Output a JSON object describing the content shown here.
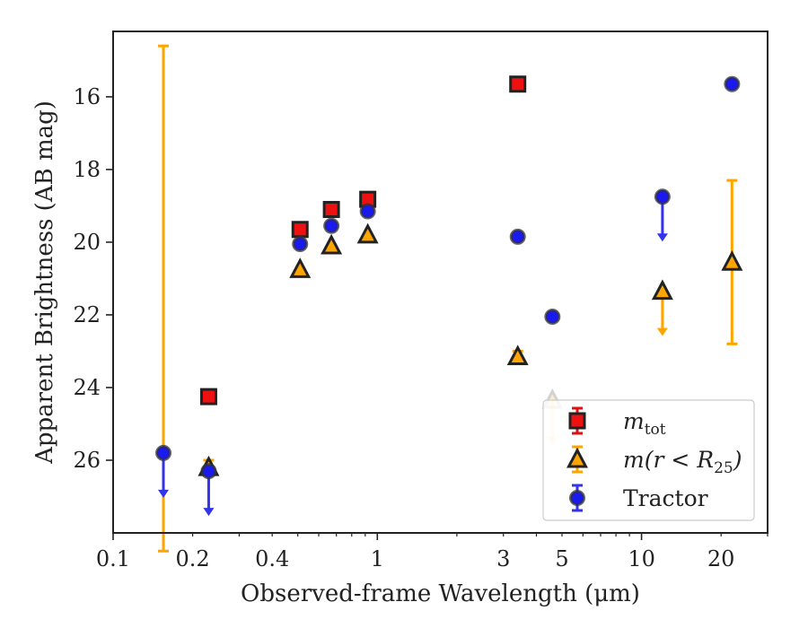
{
  "chart_data": {
    "type": "scatter",
    "title": "",
    "xlabel": "Observed-frame Wavelength (μm)",
    "ylabel": "Apparent Brightness (AB mag)",
    "xscale": "log",
    "xlim": [
      0.1,
      30
    ],
    "ylim": [
      28.0,
      14.2
    ],
    "y_inverted": true,
    "grid": false,
    "legend_position": "lower-right",
    "x_ticks": [
      {
        "value": 0.1,
        "label": "0.1"
      },
      {
        "value": 0.2,
        "label": "0.2"
      },
      {
        "value": 0.4,
        "label": "0.4"
      },
      {
        "value": 1,
        "label": "1"
      },
      {
        "value": 3,
        "label": "3"
      },
      {
        "value": 5,
        "label": "5"
      },
      {
        "value": 10,
        "label": "10"
      },
      {
        "value": 20,
        "label": "20"
      }
    ],
    "y_ticks": [
      {
        "value": 16,
        "label": "16"
      },
      {
        "value": 18,
        "label": "18"
      },
      {
        "value": 20,
        "label": "20"
      },
      {
        "value": 22,
        "label": "22"
      },
      {
        "value": 24,
        "label": "24"
      },
      {
        "value": 26,
        "label": "26"
      }
    ],
    "series": [
      {
        "name": "m_tot",
        "legend_label": {
          "base": "m",
          "sub": "tot"
        },
        "marker": "square",
        "face_color": "#ee1111",
        "edge_color": "#222222",
        "errorbar_color": "#dd1111",
        "points": [
          {
            "x": 0.23,
            "y": 24.25
          },
          {
            "x": 0.51,
            "y": 19.65
          },
          {
            "x": 0.67,
            "y": 19.1
          },
          {
            "x": 0.92,
            "y": 18.82
          },
          {
            "x": 3.4,
            "y": 15.65
          }
        ]
      },
      {
        "name": "m(r<R25)",
        "legend_label": {
          "base": "m(r < R",
          "sub": "25",
          "tail": ")"
        },
        "marker": "triangle",
        "face_color": "#ffa500",
        "edge_color": "#222222",
        "errorbar_color": "#ffa500",
        "points": [
          {
            "x": 0.155,
            "y_err_top": 14.6,
            "y_err_bottom": 28.5,
            "no_marker": true
          },
          {
            "x": 0.23,
            "y": 26.2,
            "y_err_top": 26.0
          },
          {
            "x": 0.51,
            "y": 20.75
          },
          {
            "x": 0.67,
            "y": 20.1
          },
          {
            "x": 0.92,
            "y": 19.8
          },
          {
            "x": 3.4,
            "y": 23.15,
            "y_err_top": 23.0
          },
          {
            "x": 4.6,
            "y": 24.35,
            "upper_limit": true,
            "faded": true
          },
          {
            "x": 12,
            "y": 21.35,
            "upper_limit": true
          },
          {
            "x": 22,
            "y": 20.55,
            "y_err_top": 18.3,
            "y_err_bottom": 22.8
          }
        ]
      },
      {
        "name": "Tractor",
        "legend_label": {
          "base": "Tractor"
        },
        "marker": "circle",
        "face_color": "#1a1aee",
        "edge_color": "#333333",
        "errorbar_color": "#3333ee",
        "points": [
          {
            "x": 0.155,
            "y": 25.8,
            "upper_limit": true
          },
          {
            "x": 0.23,
            "y": 26.3,
            "upper_limit": true
          },
          {
            "x": 0.51,
            "y": 20.05
          },
          {
            "x": 0.67,
            "y": 19.55
          },
          {
            "x": 0.92,
            "y": 19.15
          },
          {
            "x": 3.4,
            "y": 19.85
          },
          {
            "x": 4.6,
            "y": 22.05
          },
          {
            "x": 12,
            "y": 18.75,
            "upper_limit": true
          },
          {
            "x": 22,
            "y": 15.65
          }
        ]
      }
    ]
  }
}
